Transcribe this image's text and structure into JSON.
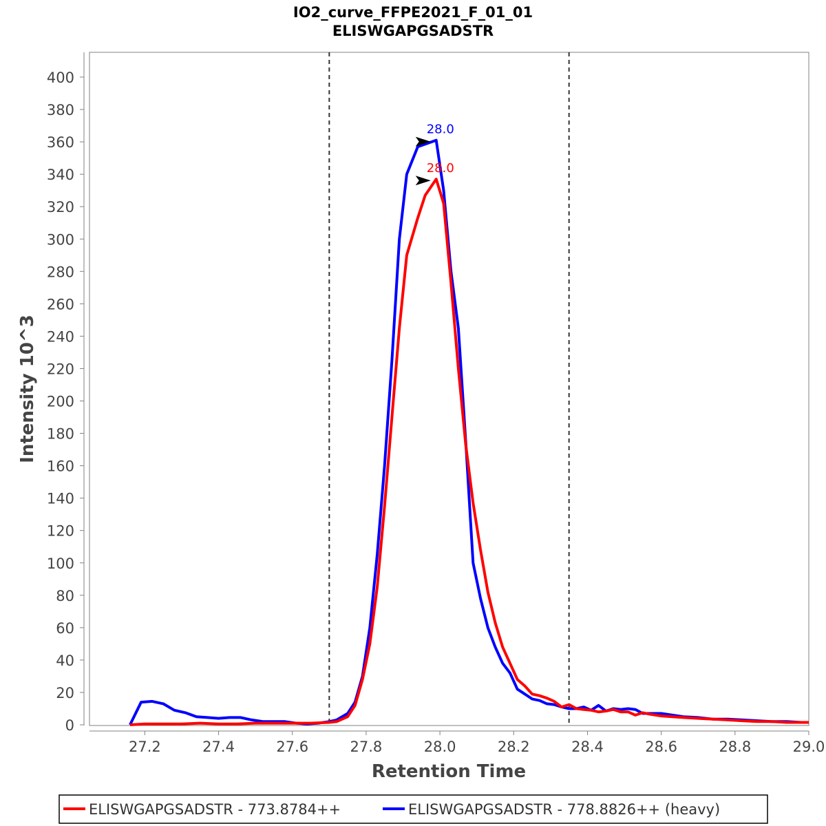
{
  "chart_data": {
    "type": "line",
    "title": "IO2_curve_FFPE2021_F_01_01",
    "subtitle": "ELISWGAPGSADSTR",
    "xlabel": "Retention Time",
    "ylabel": "Intensity 10^3",
    "xlim": [
      27.05,
      29.0
    ],
    "ylim": [
      0,
      415
    ],
    "x_ticks": [
      "27.2",
      "27.4",
      "27.6",
      "27.8",
      "28.0",
      "28.2",
      "28.4",
      "28.6",
      "28.8",
      "29.0"
    ],
    "y_ticks": [
      "0",
      "20",
      "40",
      "60",
      "80",
      "100",
      "120",
      "140",
      "160",
      "180",
      "200",
      "220",
      "240",
      "260",
      "280",
      "300",
      "320",
      "340",
      "360",
      "380",
      "400"
    ],
    "grid": false,
    "legend_position": "bottom",
    "boundaries": [
      27.7,
      28.35
    ],
    "series": [
      {
        "name": "ELISWGAPGSADSTR - 773.8784++",
        "color": "#ff0000",
        "peak_label": "28.0",
        "peak": [
          27.99,
          337
        ],
        "points": [
          [
            27.16,
            0
          ],
          [
            27.2,
            0.5
          ],
          [
            27.25,
            0.5
          ],
          [
            27.3,
            0.5
          ],
          [
            27.35,
            1
          ],
          [
            27.4,
            0.5
          ],
          [
            27.45,
            0.5
          ],
          [
            27.5,
            1
          ],
          [
            27.55,
            1
          ],
          [
            27.6,
            1
          ],
          [
            27.65,
            1
          ],
          [
            27.7,
            1.5
          ],
          [
            27.72,
            2
          ],
          [
            27.75,
            5
          ],
          [
            27.77,
            12
          ],
          [
            27.79,
            28
          ],
          [
            27.81,
            50
          ],
          [
            27.83,
            85
          ],
          [
            27.85,
            135
          ],
          [
            27.87,
            190
          ],
          [
            27.89,
            245
          ],
          [
            27.91,
            290
          ],
          [
            27.94,
            313
          ],
          [
            27.96,
            327
          ],
          [
            27.99,
            337
          ],
          [
            28.01,
            322
          ],
          [
            28.03,
            273
          ],
          [
            28.05,
            220
          ],
          [
            28.07,
            173
          ],
          [
            28.09,
            137
          ],
          [
            28.11,
            108
          ],
          [
            28.13,
            82
          ],
          [
            28.15,
            63
          ],
          [
            28.17,
            48
          ],
          [
            28.19,
            38
          ],
          [
            28.21,
            28
          ],
          [
            28.23,
            24
          ],
          [
            28.25,
            19
          ],
          [
            28.27,
            18
          ],
          [
            28.29,
            16.5
          ],
          [
            28.31,
            14.5
          ],
          [
            28.33,
            11
          ],
          [
            28.35,
            12.5
          ],
          [
            28.37,
            10
          ],
          [
            28.39,
            9.5
          ],
          [
            28.41,
            9
          ],
          [
            28.43,
            8
          ],
          [
            28.45,
            8.5
          ],
          [
            28.47,
            9.5
          ],
          [
            28.49,
            8
          ],
          [
            28.51,
            8
          ],
          [
            28.53,
            6
          ],
          [
            28.55,
            7.5
          ],
          [
            28.57,
            6.5
          ],
          [
            28.6,
            5.5
          ],
          [
            28.63,
            5
          ],
          [
            28.66,
            4.5
          ],
          [
            28.7,
            4
          ],
          [
            28.74,
            3.5
          ],
          [
            28.78,
            3
          ],
          [
            28.82,
            2.5
          ],
          [
            28.86,
            2
          ],
          [
            28.9,
            2
          ],
          [
            28.94,
            1.5
          ],
          [
            28.98,
            1.5
          ],
          [
            29.0,
            1.5
          ]
        ]
      },
      {
        "name": "ELISWGAPGSADSTR - 778.8826++ (heavy)",
        "color": "#0000ff",
        "peak_label": "28.0",
        "peak": [
          27.99,
          361
        ],
        "points": [
          [
            27.16,
            0
          ],
          [
            27.19,
            14
          ],
          [
            27.22,
            14.5
          ],
          [
            27.25,
            13
          ],
          [
            27.28,
            9
          ],
          [
            27.31,
            7.5
          ],
          [
            27.34,
            5
          ],
          [
            27.37,
            4.5
          ],
          [
            27.4,
            4
          ],
          [
            27.43,
            4.5
          ],
          [
            27.46,
            4.5
          ],
          [
            27.49,
            3
          ],
          [
            27.52,
            2
          ],
          [
            27.55,
            2
          ],
          [
            27.58,
            2
          ],
          [
            27.61,
            1
          ],
          [
            27.64,
            0.5
          ],
          [
            27.67,
            1
          ],
          [
            27.7,
            2
          ],
          [
            27.72,
            3
          ],
          [
            27.75,
            7
          ],
          [
            27.77,
            14
          ],
          [
            27.79,
            30
          ],
          [
            27.81,
            60
          ],
          [
            27.83,
            105
          ],
          [
            27.85,
            160
          ],
          [
            27.87,
            225
          ],
          [
            27.89,
            300
          ],
          [
            27.91,
            340
          ],
          [
            27.94,
            357
          ],
          [
            27.99,
            361
          ],
          [
            28.01,
            330
          ],
          [
            28.03,
            280
          ],
          [
            28.05,
            245
          ],
          [
            28.07,
            175
          ],
          [
            28.09,
            100
          ],
          [
            28.11,
            78
          ],
          [
            28.13,
            60
          ],
          [
            28.15,
            48
          ],
          [
            28.17,
            38
          ],
          [
            28.19,
            32
          ],
          [
            28.21,
            22
          ],
          [
            28.23,
            19
          ],
          [
            28.25,
            16
          ],
          [
            28.27,
            15
          ],
          [
            28.29,
            13
          ],
          [
            28.31,
            12.5
          ],
          [
            28.33,
            11
          ],
          [
            28.35,
            10
          ],
          [
            28.37,
            10
          ],
          [
            28.39,
            11
          ],
          [
            28.41,
            9
          ],
          [
            28.43,
            12
          ],
          [
            28.45,
            8.5
          ],
          [
            28.47,
            10
          ],
          [
            28.49,
            9.5
          ],
          [
            28.51,
            10
          ],
          [
            28.53,
            9.5
          ],
          [
            28.55,
            7
          ],
          [
            28.57,
            7
          ],
          [
            28.6,
            7
          ],
          [
            28.63,
            6
          ],
          [
            28.66,
            5
          ],
          [
            28.7,
            4.5
          ],
          [
            28.74,
            3.5
          ],
          [
            28.78,
            3.5
          ],
          [
            28.82,
            3
          ],
          [
            28.86,
            2.5
          ],
          [
            28.9,
            2
          ],
          [
            28.94,
            2
          ],
          [
            28.98,
            1.5
          ],
          [
            29.0,
            1.5
          ]
        ]
      }
    ]
  }
}
